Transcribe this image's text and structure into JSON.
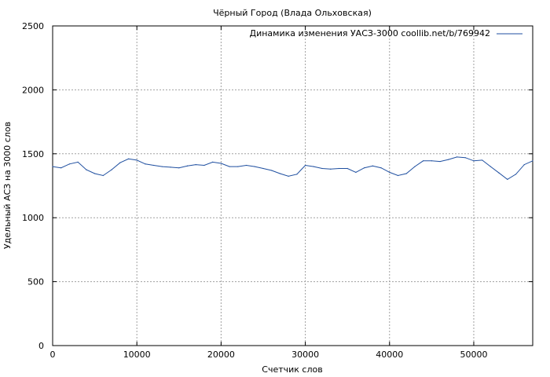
{
  "chart_data": {
    "type": "line",
    "title": "Чёрный Город (Влада Ольховская)",
    "xlabel": "Счетчик слов",
    "ylabel": "Удельный АСЗ на 3000 слов",
    "xlim": [
      0,
      57000
    ],
    "ylim": [
      0,
      2500
    ],
    "xticks": [
      0,
      10000,
      20000,
      30000,
      40000,
      50000
    ],
    "yticks": [
      0,
      500,
      1000,
      1500,
      2000,
      2500
    ],
    "grid": true,
    "legend_position": "top-right",
    "colors": {
      "series": "#1f4fa0",
      "frame": "#000000",
      "grid": "#a0a0a0"
    },
    "series": [
      {
        "name": "Динамика изменения УАСЗ-3000 coollib.net/b/769942",
        "x": [
          0,
          1000,
          2000,
          3000,
          4000,
          5000,
          6000,
          7000,
          8000,
          9000,
          10000,
          11000,
          12000,
          13000,
          14000,
          15000,
          16000,
          17000,
          18000,
          19000,
          20000,
          21000,
          22000,
          23000,
          24000,
          25000,
          26000,
          27000,
          28000,
          29000,
          30000,
          31000,
          32000,
          33000,
          34000,
          35000,
          36000,
          37000,
          38000,
          39000,
          40000,
          41000,
          42000,
          43000,
          44000,
          45000,
          46000,
          47000,
          48000,
          49000,
          50000,
          51000,
          52000,
          53000,
          54000,
          55000,
          56000,
          57000
        ],
        "y": [
          1400,
          1390,
          1420,
          1435,
          1375,
          1345,
          1330,
          1375,
          1430,
          1460,
          1450,
          1420,
          1410,
          1400,
          1395,
          1390,
          1405,
          1415,
          1410,
          1435,
          1425,
          1400,
          1400,
          1410,
          1400,
          1385,
          1370,
          1345,
          1325,
          1340,
          1410,
          1400,
          1385,
          1380,
          1385,
          1385,
          1355,
          1390,
          1405,
          1390,
          1355,
          1330,
          1345,
          1400,
          1445,
          1445,
          1440,
          1455,
          1475,
          1470,
          1445,
          1450,
          1400,
          1350,
          1300,
          1340,
          1415,
          1445
        ]
      }
    ]
  }
}
